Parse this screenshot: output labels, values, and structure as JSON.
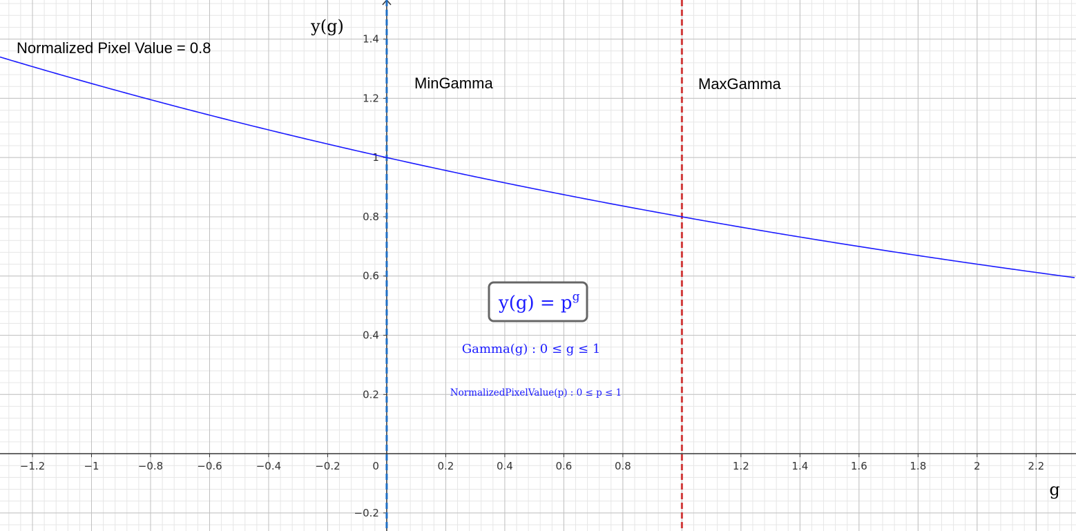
{
  "chart_data": {
    "type": "line",
    "xlabel": "g",
    "ylabel": "y(g)",
    "xlim": [
      -1.31,
      2.335
    ],
    "ylim": [
      -0.261,
      1.532
    ],
    "grid": true,
    "x_ticks": [
      -1.2,
      -1,
      -0.8,
      -0.6,
      -0.4,
      -0.2,
      0.2,
      0.4,
      0.6,
      0.8,
      1,
      1.2,
      1.4,
      1.6,
      1.8,
      2,
      2.2
    ],
    "x_tick_labels": [
      "−1.2",
      "−1",
      "−0.8",
      "−0.6",
      "−0.4",
      "−0.2",
      "0.2",
      "0.4",
      "0.6",
      "0.8",
      "",
      "1.2",
      "1.4",
      "1.6",
      "1.8",
      "2",
      "2.2"
    ],
    "y_ticks": [
      -0.2,
      0.2,
      0.4,
      0.6,
      0.8,
      1,
      1.2,
      1.4
    ],
    "y_tick_labels": [
      "−0.2",
      "0.2",
      "0.4",
      "0.6",
      "0.8",
      "1",
      "1.2",
      "1.4"
    ],
    "origin_label": "0",
    "series": [
      {
        "name": "Normalized Pixel Value = 0.8",
        "function": "y(g) = 0.8^g",
        "base": 0.8,
        "color": "#1a1aff"
      }
    ],
    "vertical_lines": [
      {
        "label": "MinGamma",
        "x": 0,
        "color": "#1f6fc5",
        "style": "dashed"
      },
      {
        "label": "MaxGamma",
        "x": 1,
        "color": "#d13a3a",
        "style": "dashed"
      }
    ],
    "annotations": {
      "formula_box": {
        "base": "y(g) = p",
        "exponent": "g"
      },
      "gamma_range": "Gamma(g) : 0 ≤ g ≤ 1",
      "pixel_range": "NormalizedPixelValue(p) : 0 ≤ p ≤ 1"
    }
  },
  "colors": {
    "curve": "#1a1aff",
    "min_gamma": "#1f6fc5",
    "max_gamma": "#d13a3a",
    "major_grid": "#c0c0c0",
    "minor_grid": "#e6e6e6",
    "axis": "#333333"
  }
}
